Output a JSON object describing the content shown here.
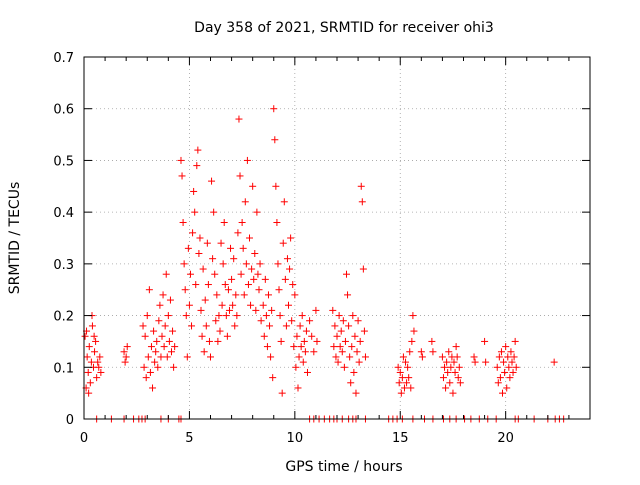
{
  "chart_data": {
    "type": "scatter",
    "title": "Day 358 of 2021, SRMTID for receiver ohi3",
    "xlabel": "GPS time / hours",
    "ylabel": "SRMTID / TECUs",
    "xlim": [
      0,
      24
    ],
    "ylim": [
      0,
      0.7
    ],
    "x_ticks": [
      0,
      5,
      10,
      15,
      20
    ],
    "x_tick_labels": [
      "0",
      "5",
      "10",
      "15",
      "20"
    ],
    "y_ticks": [
      0,
      0.1,
      0.2,
      0.3,
      0.4,
      0.5,
      0.6,
      0.7
    ],
    "y_tick_labels": [
      "0",
      "0.1",
      "0.2",
      "0.3",
      "0.4",
      "0.5",
      "0.6",
      "0.7"
    ],
    "grid": true,
    "marker": "+",
    "series": [
      {
        "name": "SRMTID",
        "color": "#ff0000",
        "points": [
          [
            0.05,
            0.16
          ],
          [
            0.1,
            0.06
          ],
          [
            0.15,
            0.12
          ],
          [
            0.2,
            0.09
          ],
          [
            0.25,
            0.14
          ],
          [
            0.3,
            0.07
          ],
          [
            0.35,
            0.11
          ],
          [
            0.4,
            0.18
          ],
          [
            0.45,
            0.1
          ],
          [
            0.5,
            0.13
          ],
          [
            0.55,
            0.15
          ],
          [
            0.6,
            0.08
          ],
          [
            0.65,
            0.11
          ],
          [
            0.7,
            0.1
          ],
          [
            0.75,
            0.12
          ],
          [
            0.8,
            0.09
          ],
          [
            0.12,
            0.17
          ],
          [
            0.22,
            0.05
          ],
          [
            0.38,
            0.2
          ],
          [
            0.48,
            0.16
          ],
          [
            1.9,
            0.13
          ],
          [
            1.95,
            0.11
          ],
          [
            2.0,
            0.12
          ],
          [
            2.05,
            0.14
          ],
          [
            2.8,
            0.18
          ],
          [
            2.85,
            0.1
          ],
          [
            2.9,
            0.16
          ],
          [
            2.95,
            0.08
          ],
          [
            3.0,
            0.2
          ],
          [
            3.05,
            0.12
          ],
          [
            3.1,
            0.25
          ],
          [
            3.15,
            0.09
          ],
          [
            3.2,
            0.14
          ],
          [
            3.25,
            0.06
          ],
          [
            3.3,
            0.17
          ],
          [
            3.35,
            0.11
          ],
          [
            3.4,
            0.13
          ],
          [
            3.45,
            0.15
          ],
          [
            3.5,
            0.1
          ],
          [
            3.55,
            0.19
          ],
          [
            3.6,
            0.22
          ],
          [
            3.65,
            0.12
          ],
          [
            3.7,
            0.16
          ],
          [
            3.75,
            0.24
          ],
          [
            3.8,
            0.14
          ],
          [
            3.85,
            0.18
          ],
          [
            3.9,
            0.28
          ],
          [
            3.95,
            0.12
          ],
          [
            4.0,
            0.2
          ],
          [
            4.05,
            0.15
          ],
          [
            4.1,
            0.23
          ],
          [
            4.15,
            0.13
          ],
          [
            4.2,
            0.17
          ],
          [
            4.25,
            0.1
          ],
          [
            4.3,
            0.14
          ],
          [
            4.6,
            0.5
          ],
          [
            4.65,
            0.47
          ],
          [
            4.7,
            0.38
          ],
          [
            4.75,
            0.3
          ],
          [
            4.8,
            0.25
          ],
          [
            4.85,
            0.2
          ],
          [
            4.9,
            0.12
          ],
          [
            4.95,
            0.33
          ],
          [
            5.0,
            0.22
          ],
          [
            5.05,
            0.28
          ],
          [
            5.1,
            0.18
          ],
          [
            5.15,
            0.36
          ],
          [
            5.2,
            0.44
          ],
          [
            5.25,
            0.4
          ],
          [
            5.3,
            0.26
          ],
          [
            5.35,
            0.49
          ],
          [
            5.4,
            0.52
          ],
          [
            5.45,
            0.32
          ],
          [
            5.5,
            0.35
          ],
          [
            5.55,
            0.21
          ],
          [
            5.6,
            0.16
          ],
          [
            5.65,
            0.29
          ],
          [
            5.7,
            0.13
          ],
          [
            5.75,
            0.23
          ],
          [
            5.8,
            0.18
          ],
          [
            5.85,
            0.34
          ],
          [
            5.9,
            0.26
          ],
          [
            5.95,
            0.15
          ],
          [
            6.0,
            0.12
          ],
          [
            6.05,
            0.46
          ],
          [
            6.1,
            0.31
          ],
          [
            6.15,
            0.4
          ],
          [
            6.2,
            0.28
          ],
          [
            6.25,
            0.19
          ],
          [
            6.3,
            0.24
          ],
          [
            6.35,
            0.15
          ],
          [
            6.4,
            0.2
          ],
          [
            6.45,
            0.17
          ],
          [
            6.5,
            0.34
          ],
          [
            6.55,
            0.22
          ],
          [
            6.6,
            0.3
          ],
          [
            6.65,
            0.38
          ],
          [
            6.7,
            0.26
          ],
          [
            6.75,
            0.2
          ],
          [
            6.8,
            0.16
          ],
          [
            6.85,
            0.25
          ],
          [
            6.9,
            0.21
          ],
          [
            6.95,
            0.33
          ],
          [
            7.0,
            0.27
          ],
          [
            7.05,
            0.22
          ],
          [
            7.1,
            0.31
          ],
          [
            7.15,
            0.18
          ],
          [
            7.2,
            0.24
          ],
          [
            7.25,
            0.2
          ],
          [
            7.3,
            0.36
          ],
          [
            7.35,
            0.58
          ],
          [
            7.4,
            0.47
          ],
          [
            7.45,
            0.28
          ],
          [
            7.5,
            0.38
          ],
          [
            7.55,
            0.33
          ],
          [
            7.6,
            0.24
          ],
          [
            7.65,
            0.42
          ],
          [
            7.7,
            0.3
          ],
          [
            7.75,
            0.5
          ],
          [
            7.8,
            0.26
          ],
          [
            7.85,
            0.35
          ],
          [
            7.9,
            0.22
          ],
          [
            7.95,
            0.29
          ],
          [
            8.0,
            0.45
          ],
          [
            8.05,
            0.27
          ],
          [
            8.1,
            0.32
          ],
          [
            8.15,
            0.21
          ],
          [
            8.2,
            0.4
          ],
          [
            8.25,
            0.28
          ],
          [
            8.3,
            0.25
          ],
          [
            8.35,
            0.3
          ],
          [
            8.4,
            0.19
          ],
          [
            8.5,
            0.22
          ],
          [
            8.55,
            0.16
          ],
          [
            8.6,
            0.27
          ],
          [
            8.65,
            0.2
          ],
          [
            8.7,
            0.14
          ],
          [
            8.75,
            0.24
          ],
          [
            8.8,
            0.18
          ],
          [
            8.85,
            0.12
          ],
          [
            8.9,
            0.21
          ],
          [
            8.95,
            0.08
          ],
          [
            9.0,
            0.6
          ],
          [
            9.05,
            0.54
          ],
          [
            9.1,
            0.45
          ],
          [
            9.15,
            0.38
          ],
          [
            9.2,
            0.3
          ],
          [
            9.25,
            0.25
          ],
          [
            9.3,
            0.2
          ],
          [
            9.35,
            0.15
          ],
          [
            9.4,
            0.05
          ],
          [
            9.45,
            0.34
          ],
          [
            9.5,
            0.42
          ],
          [
            9.55,
            0.27
          ],
          [
            9.6,
            0.18
          ],
          [
            9.65,
            0.31
          ],
          [
            9.7,
            0.22
          ],
          [
            9.75,
            0.29
          ],
          [
            9.8,
            0.35
          ],
          [
            9.85,
            0.19
          ],
          [
            9.9,
            0.26
          ],
          [
            9.95,
            0.14
          ],
          [
            10.0,
            0.24
          ],
          [
            10.05,
            0.1
          ],
          [
            10.1,
            0.16
          ],
          [
            10.15,
            0.06
          ],
          [
            10.2,
            0.12
          ],
          [
            10.25,
            0.18
          ],
          [
            10.3,
            0.14
          ],
          [
            10.35,
            0.2
          ],
          [
            10.4,
            0.11
          ],
          [
            10.45,
            0.15
          ],
          [
            10.5,
            0.13
          ],
          [
            10.55,
            0.17
          ],
          [
            10.6,
            0.09
          ],
          [
            10.7,
            0.19
          ],
          [
            10.8,
            0.16
          ],
          [
            10.9,
            0.13
          ],
          [
            11.0,
            0.21
          ],
          [
            11.05,
            0.15
          ],
          [
            11.8,
            0.21
          ],
          [
            11.85,
            0.14
          ],
          [
            11.9,
            0.18
          ],
          [
            11.95,
            0.12
          ],
          [
            12.0,
            0.16
          ],
          [
            12.05,
            0.11
          ],
          [
            12.1,
            0.2
          ],
          [
            12.15,
            0.14
          ],
          [
            12.2,
            0.17
          ],
          [
            12.25,
            0.13
          ],
          [
            12.3,
            0.19
          ],
          [
            12.35,
            0.1
          ],
          [
            12.4,
            0.15
          ],
          [
            12.45,
            0.28
          ],
          [
            12.5,
            0.24
          ],
          [
            12.55,
            0.18
          ],
          [
            12.6,
            0.12
          ],
          [
            12.65,
            0.07
          ],
          [
            12.7,
            0.14
          ],
          [
            12.75,
            0.2
          ],
          [
            12.8,
            0.09
          ],
          [
            12.85,
            0.16
          ],
          [
            12.9,
            0.05
          ],
          [
            12.95,
            0.13
          ],
          [
            13.0,
            0.19
          ],
          [
            13.05,
            0.11
          ],
          [
            13.1,
            0.15
          ],
          [
            13.15,
            0.45
          ],
          [
            13.2,
            0.42
          ],
          [
            13.25,
            0.29
          ],
          [
            13.3,
            0.17
          ],
          [
            13.35,
            0.12
          ],
          [
            14.9,
            0.1
          ],
          [
            14.95,
            0.07
          ],
          [
            15.0,
            0.09
          ],
          [
            15.05,
            0.05
          ],
          [
            15.1,
            0.08
          ],
          [
            15.15,
            0.12
          ],
          [
            15.2,
            0.06
          ],
          [
            15.25,
            0.11
          ],
          [
            15.3,
            0.07
          ],
          [
            15.35,
            0.1
          ],
          [
            15.4,
            0.08
          ],
          [
            15.45,
            0.13
          ],
          [
            15.5,
            0.06
          ],
          [
            15.55,
            0.15
          ],
          [
            15.6,
            0.2
          ],
          [
            15.65,
            0.17
          ],
          [
            16.0,
            0.13
          ],
          [
            16.05,
            0.12
          ],
          [
            16.5,
            0.15
          ],
          [
            16.55,
            0.13
          ],
          [
            17.0,
            0.12
          ],
          [
            17.05,
            0.08
          ],
          [
            17.1,
            0.1
          ],
          [
            17.15,
            0.06
          ],
          [
            17.2,
            0.11
          ],
          [
            17.25,
            0.09
          ],
          [
            17.3,
            0.13
          ],
          [
            17.35,
            0.07
          ],
          [
            17.4,
            0.1
          ],
          [
            17.45,
            0.12
          ],
          [
            17.5,
            0.05
          ],
          [
            17.55,
            0.11
          ],
          [
            17.6,
            0.09
          ],
          [
            17.65,
            0.14
          ],
          [
            17.7,
            0.12
          ],
          [
            17.75,
            0.08
          ],
          [
            17.8,
            0.1
          ],
          [
            17.85,
            0.07
          ],
          [
            18.5,
            0.12
          ],
          [
            18.55,
            0.11
          ],
          [
            19.0,
            0.15
          ],
          [
            19.05,
            0.11
          ],
          [
            19.6,
            0.1
          ],
          [
            19.65,
            0.07
          ],
          [
            19.7,
            0.12
          ],
          [
            19.75,
            0.08
          ],
          [
            19.8,
            0.13
          ],
          [
            19.85,
            0.05
          ],
          [
            19.9,
            0.11
          ],
          [
            19.95,
            0.09
          ],
          [
            20.0,
            0.14
          ],
          [
            20.05,
            0.06
          ],
          [
            20.1,
            0.12
          ],
          [
            20.15,
            0.1
          ],
          [
            20.2,
            0.08
          ],
          [
            20.25,
            0.13
          ],
          [
            20.3,
            0.11
          ],
          [
            20.35,
            0.09
          ],
          [
            20.4,
            0.12
          ],
          [
            20.45,
            0.15
          ],
          [
            20.5,
            0.1
          ],
          [
            22.3,
            0.11
          ],
          [
            0.6,
            0
          ],
          [
            1.3,
            0
          ],
          [
            1.9,
            0
          ],
          [
            2.35,
            0
          ],
          [
            2.6,
            0
          ],
          [
            2.75,
            0
          ],
          [
            2.9,
            0
          ],
          [
            3.65,
            0
          ],
          [
            4.0,
            0
          ],
          [
            4.5,
            0
          ],
          [
            4.6,
            0
          ],
          [
            10.7,
            0
          ],
          [
            10.9,
            0
          ],
          [
            11.15,
            0
          ],
          [
            11.4,
            0
          ],
          [
            11.65,
            0
          ],
          [
            11.85,
            0
          ],
          [
            12.0,
            0
          ],
          [
            12.25,
            0
          ],
          [
            12.55,
            0
          ],
          [
            12.75,
            0
          ],
          [
            12.9,
            0
          ],
          [
            13.35,
            0
          ],
          [
            14.45,
            0
          ],
          [
            14.65,
            0
          ],
          [
            14.85,
            0
          ],
          [
            15.1,
            0
          ],
          [
            15.6,
            0
          ],
          [
            16.15,
            0
          ],
          [
            16.55,
            0
          ],
          [
            17.05,
            0
          ],
          [
            17.35,
            0
          ],
          [
            17.65,
            0
          ],
          [
            18.05,
            0
          ],
          [
            18.35,
            0
          ],
          [
            18.75,
            0
          ],
          [
            19.15,
            0
          ],
          [
            19.55,
            0
          ],
          [
            20.45,
            0
          ],
          [
            20.6,
            0
          ],
          [
            21.35,
            0
          ],
          [
            22.0,
            0
          ],
          [
            22.35,
            0
          ],
          [
            22.55,
            0
          ],
          [
            22.75,
            0
          ]
        ]
      }
    ]
  }
}
